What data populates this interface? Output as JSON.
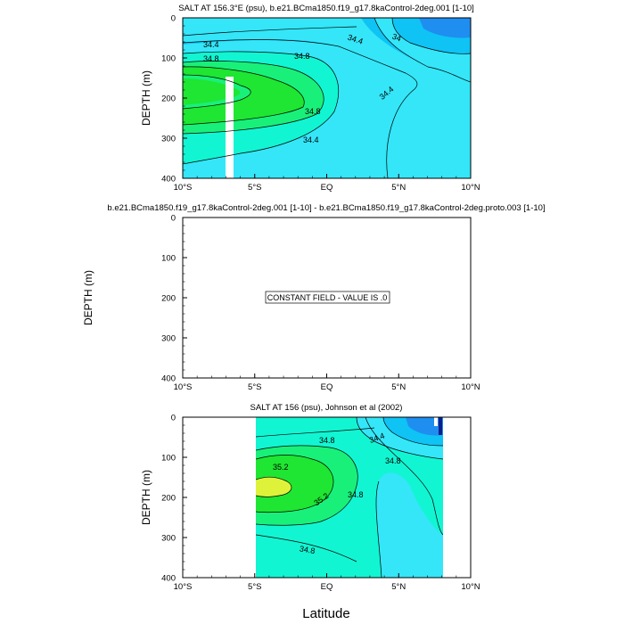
{
  "chart_data": [
    {
      "type": "contour",
      "title": "SALT AT 156.3°E (psu), b.e21.BCma1850.f19_g17.8kaControl-2deg.001 [1-10]",
      "ylabel": "DEPTH (m)",
      "xlabel": "",
      "x_ticks": [
        "10°S",
        "5°S",
        "EQ",
        "5°N",
        "10°N"
      ],
      "y_ticks": [
        "0",
        "100",
        "200",
        "300",
        "400"
      ],
      "xlim": [
        -10,
        10
      ],
      "ylim": [
        0,
        400
      ],
      "contour_labels": [
        "34.4",
        "34.4",
        "34",
        "34.8",
        "34.8",
        "34.8",
        "34.4",
        "34.4"
      ],
      "contour_values": [
        34.0,
        34.4,
        34.8,
        35.2
      ]
    },
    {
      "type": "contour",
      "title": "b.e21.BCma1850.f19_g17.8kaControl-2deg.001 [1-10] - b.e21.BCma1850.f19_g17.8kaControl-2deg.proto.003 [1-10]",
      "ylabel": "DEPTH (m)",
      "xlabel": "",
      "x_ticks": [
        "10°S",
        "5°S",
        "EQ",
        "5°N",
        "10°N"
      ],
      "y_ticks": [
        "0",
        "100",
        "200",
        "300",
        "400"
      ],
      "xlim": [
        -10,
        10
      ],
      "ylim": [
        0,
        400
      ],
      "message": "CONSTANT FIELD - VALUE IS .0"
    },
    {
      "type": "contour",
      "title": "SALT AT 156 (psu), Johnson et al (2002)",
      "ylabel": "DEPTH (m)",
      "xlabel": "Latitude",
      "x_ticks": [
        "10°S",
        "5°S",
        "EQ",
        "5°N",
        "10°N"
      ],
      "y_ticks": [
        "0",
        "100",
        "200",
        "300",
        "400"
      ],
      "xlim": [
        -10,
        10
      ],
      "ylim": [
        0,
        400
      ],
      "data_xrange": [
        -5,
        8
      ],
      "contour_labels": [
        "34.8",
        "34.4",
        "35.2",
        "34.8",
        "35.2",
        "34.8",
        "34.8"
      ],
      "contour_values": [
        34.0,
        34.4,
        34.8,
        35.2,
        35.6
      ]
    }
  ],
  "colors": {
    "c_lt34": "#1e8ef0",
    "c_34": "#0fc3f5",
    "c_344": "#34e6f8",
    "c_348": "#12f5d2",
    "c_352": "#19f07a",
    "c_356": "#1ee632",
    "c_36": "#dff23a"
  }
}
